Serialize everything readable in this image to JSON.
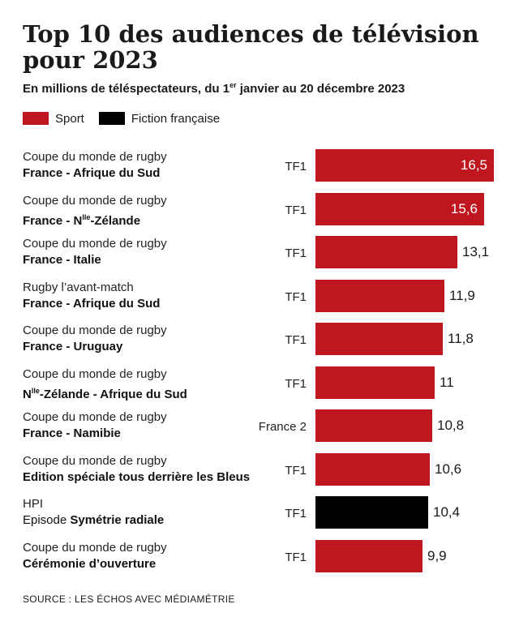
{
  "title": "Top 10 des audiences de télévision pour 2023",
  "subtitle_pre": "En millions de téléspectateurs, du 1",
  "subtitle_sup": "er",
  "subtitle_post": " janvier au 20 décembre 2023",
  "legend": [
    {
      "label": "Sport",
      "color": "#c0161f"
    },
    {
      "label": "Fiction française",
      "color": "#000000"
    }
  ],
  "source": "SOURCE : LES ÉCHOS AVEC MÉDIAMÉTRIE",
  "chart_data": {
    "type": "bar",
    "orientation": "horizontal",
    "title": "Top 10 des audiences de télévision pour 2023",
    "unit": "millions de téléspectateurs",
    "xlim": [
      0,
      16.5
    ],
    "rows": [
      {
        "line1": "Coupe du monde de rugby",
        "line2_pre": "",
        "line2_bold": "France - Afrique du Sud",
        "line2_sup": "",
        "line2_bold_post": "",
        "channel": "TF1",
        "value": 16.5,
        "label": "16,5",
        "category": "Sport"
      },
      {
        "line1": "Coupe du monde de rugby",
        "line2_pre": "",
        "line2_bold": "France - N",
        "line2_sup": "lle",
        "line2_bold_post": "-Zélande",
        "channel": "TF1",
        "value": 15.6,
        "label": "15,6",
        "category": "Sport"
      },
      {
        "line1": "Coupe du monde de rugby",
        "line2_pre": "",
        "line2_bold": "France - Italie",
        "line2_sup": "",
        "line2_bold_post": "",
        "channel": "TF1",
        "value": 13.1,
        "label": "13,1",
        "category": "Sport"
      },
      {
        "line1": "Rugby l’avant-match",
        "line2_pre": "",
        "line2_bold": "France - Afrique du Sud",
        "line2_sup": "",
        "line2_bold_post": "",
        "channel": "TF1",
        "value": 11.9,
        "label": "11,9",
        "category": "Sport"
      },
      {
        "line1": "Coupe du monde de rugby",
        "line2_pre": "",
        "line2_bold": "France - Uruguay",
        "line2_sup": "",
        "line2_bold_post": "",
        "channel": "TF1",
        "value": 11.8,
        "label": "11,8",
        "category": "Sport"
      },
      {
        "line1": "Coupe du monde de rugby",
        "line2_pre": "",
        "line2_bold": "N",
        "line2_sup": "lle",
        "line2_bold_post": "-Zélande - Afrique du Sud",
        "channel": "TF1",
        "value": 11.0,
        "label": "11",
        "category": "Sport"
      },
      {
        "line1": "Coupe du monde de rugby",
        "line2_pre": "",
        "line2_bold": "France - Namibie",
        "line2_sup": "",
        "line2_bold_post": "",
        "channel": "France 2",
        "value": 10.8,
        "label": "10,8",
        "category": "Sport"
      },
      {
        "line1": "Coupe du monde de rugby",
        "line2_pre": "",
        "line2_bold": "Edition spéciale tous derrière les Bleus",
        "line2_sup": "",
        "line2_bold_post": "",
        "channel": "TF1",
        "value": 10.6,
        "label": "10,6",
        "category": "Sport"
      },
      {
        "line1": "HPI",
        "line2_pre": "Episode ",
        "line2_bold": "Symétrie radiale",
        "line2_sup": "",
        "line2_bold_post": "",
        "channel": "TF1",
        "value": 10.4,
        "label": "10,4",
        "category": "Fiction française"
      },
      {
        "line1": "Coupe du monde de rugby",
        "line2_pre": "",
        "line2_bold": "Cérémonie d’ouverture",
        "line2_sup": "",
        "line2_bold_post": "",
        "channel": "TF1",
        "value": 9.9,
        "label": "9,9",
        "category": "Sport"
      }
    ]
  }
}
